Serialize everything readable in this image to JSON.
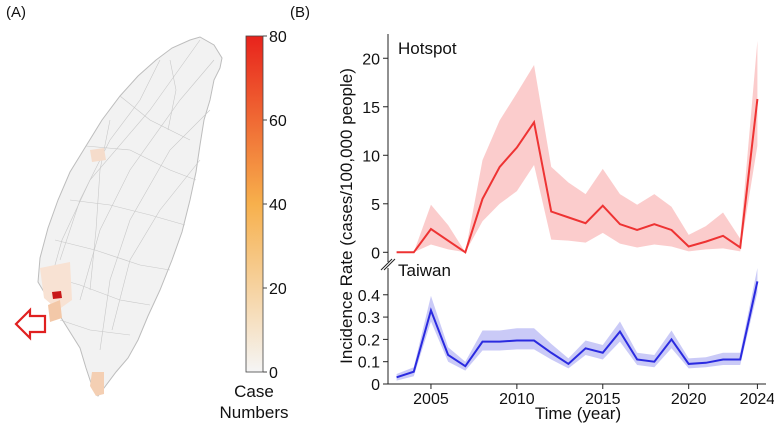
{
  "colors": {
    "hotspot": "#ee3333",
    "taiwan": "#2a2ae0",
    "map_fill": "#f2f2f2",
    "scale_low": "#f5f5f5",
    "scale_mid": "#f7b04c",
    "scale_high": "#e8231c"
  },
  "panel_a": {
    "label": "(A)",
    "arrow_icon": "hollow-arrow-pointing-to-hotspot",
    "colorbar": {
      "ticks": [
        0,
        20,
        40,
        60,
        80
      ],
      "title_line1": "Case",
      "title_line2": "Numbers"
    }
  },
  "panel_b": {
    "label": "(B)"
  },
  "chart_data": [
    {
      "type": "line",
      "title": "Hotspot",
      "xlabel": "Time (year)",
      "ylabel": "Incidence Rate (cases/100,000 people)",
      "ylim": [
        -1,
        22.5
      ],
      "yticks": [
        0,
        5,
        10,
        15,
        20
      ],
      "xlim": [
        2002.5,
        2024.5
      ],
      "xticks": [
        2005,
        2010,
        2015,
        2020,
        2024
      ],
      "x": [
        2003,
        2004,
        2005,
        2006,
        2007,
        2008,
        2009,
        2010,
        2011,
        2012,
        2013,
        2014,
        2015,
        2016,
        2017,
        2018,
        2019,
        2020,
        2021,
        2022,
        2023,
        2024
      ],
      "series": [
        {
          "name": "Hotspot",
          "values": [
            0,
            0,
            2.4,
            1.2,
            0,
            5.5,
            8.8,
            10.8,
            13.4,
            4.2,
            3.6,
            3.0,
            4.8,
            2.9,
            2.3,
            2.9,
            2.3,
            0.6,
            1.1,
            1.7,
            0.5,
            15.8
          ],
          "lower": [
            0,
            0,
            0.8,
            0.3,
            0,
            3.2,
            5.0,
            6.3,
            9.0,
            1.3,
            1.2,
            1.0,
            2.0,
            0.9,
            0.5,
            0.8,
            0.6,
            0.1,
            0.3,
            0.4,
            0.1,
            11.0
          ],
          "upper": [
            0,
            0,
            4.9,
            2.8,
            0,
            9.5,
            13.6,
            16.4,
            19.3,
            8.8,
            7.2,
            6.0,
            8.6,
            6.0,
            4.9,
            6.0,
            4.7,
            1.8,
            2.7,
            4.1,
            1.4,
            21.8
          ]
        }
      ]
    },
    {
      "type": "line",
      "title": "Taiwan",
      "xlabel": "Time (year)",
      "ylabel": "Incidence Rate (cases/100,000 people)",
      "ylim": [
        0,
        0.52
      ],
      "yticks": [
        0,
        0.1,
        0.2,
        0.3,
        0.4
      ],
      "ytick_labels": [
        "0",
        "0.1",
        "0.2",
        "0.3",
        "0.4"
      ],
      "xlim": [
        2002.5,
        2024.5
      ],
      "xticks": [
        2005,
        2010,
        2015,
        2020,
        2024
      ],
      "x": [
        2003,
        2004,
        2005,
        2006,
        2007,
        2008,
        2009,
        2010,
        2011,
        2012,
        2013,
        2014,
        2015,
        2016,
        2017,
        2018,
        2019,
        2020,
        2021,
        2022,
        2023,
        2024
      ],
      "series": [
        {
          "name": "Taiwan",
          "values": [
            0.03,
            0.055,
            0.33,
            0.13,
            0.08,
            0.19,
            0.19,
            0.195,
            0.195,
            0.14,
            0.09,
            0.16,
            0.14,
            0.235,
            0.11,
            0.1,
            0.2,
            0.09,
            0.095,
            0.11,
            0.11,
            0.46
          ],
          "lower": [
            0.015,
            0.035,
            0.28,
            0.1,
            0.06,
            0.15,
            0.15,
            0.155,
            0.155,
            0.11,
            0.07,
            0.13,
            0.11,
            0.19,
            0.085,
            0.075,
            0.16,
            0.07,
            0.075,
            0.085,
            0.085,
            0.41
          ],
          "upper": [
            0.045,
            0.075,
            0.395,
            0.165,
            0.1,
            0.24,
            0.24,
            0.25,
            0.25,
            0.18,
            0.115,
            0.195,
            0.175,
            0.28,
            0.14,
            0.13,
            0.24,
            0.115,
            0.12,
            0.14,
            0.14,
            0.52
          ]
        }
      ]
    }
  ]
}
